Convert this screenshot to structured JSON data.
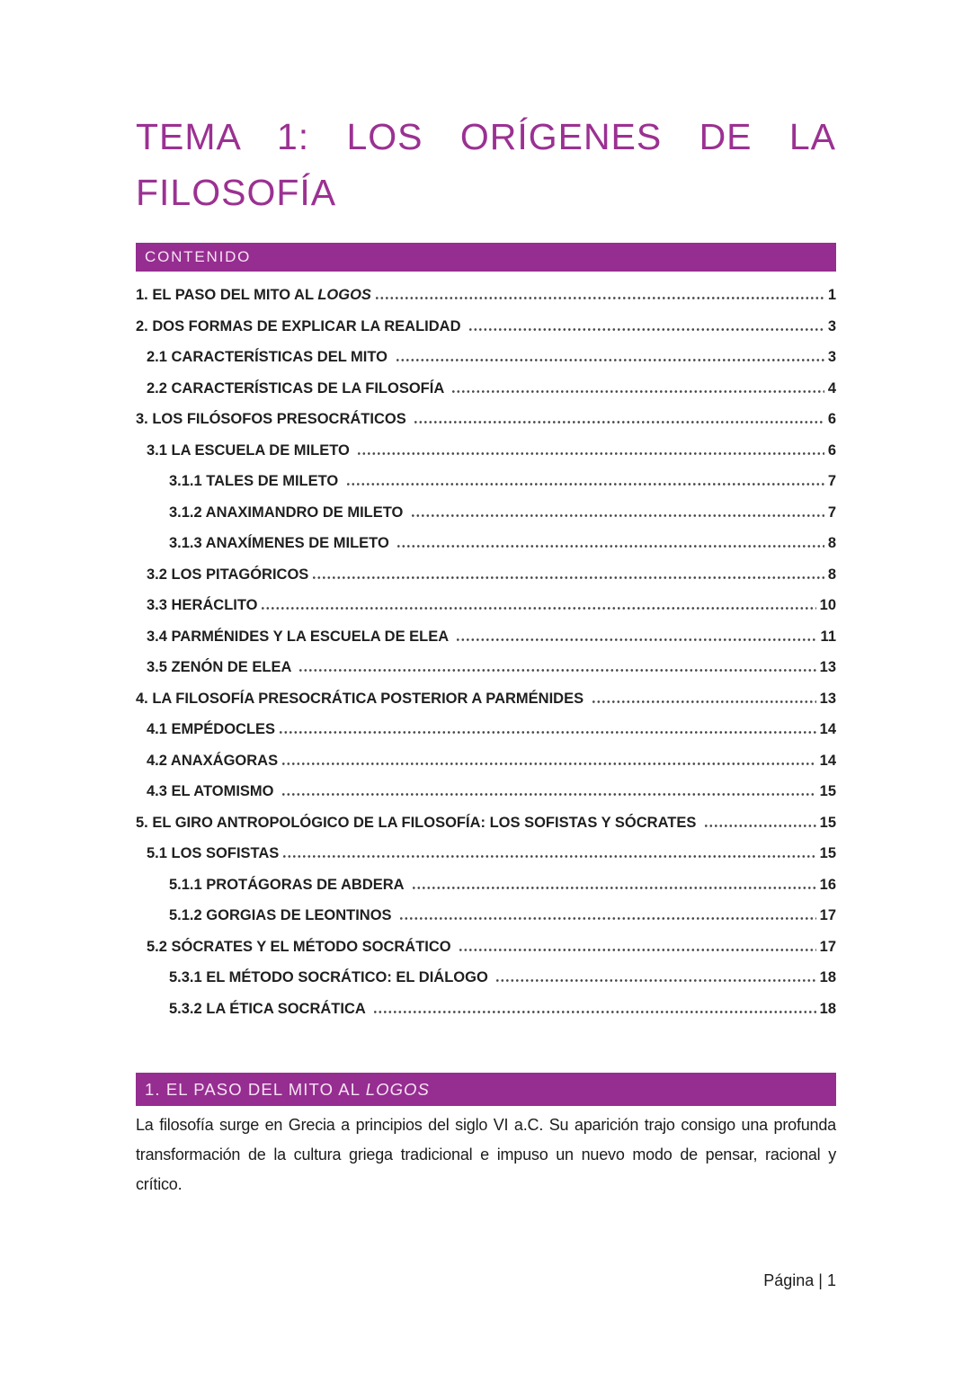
{
  "title": {
    "line1": "TEMA 1: LOS ORÍGENES DE LA",
    "line2": "FILOSOFÍA"
  },
  "toc": {
    "header": "CONTENIDO",
    "entries": [
      {
        "level": 1,
        "label": "1. EL PASO DEL MITO AL ",
        "italic": "LOGOS",
        "page": "1"
      },
      {
        "level": 1,
        "label": "2. DOS FORMAS DE EXPLICAR LA REALIDAD ",
        "italic": "",
        "page": "3"
      },
      {
        "level": 2,
        "label": "2.1 CARACTERÍSTICAS DEL MITO ",
        "italic": "",
        "page": "3"
      },
      {
        "level": 2,
        "label": "2.2 CARACTERÍSTICAS DE LA FILOSOFÍA ",
        "italic": "",
        "page": "4"
      },
      {
        "level": 1,
        "label": "3. LOS FILÓSOFOS PRESOCRÁTICOS ",
        "italic": "",
        "page": "6"
      },
      {
        "level": 2,
        "label": "3.1 LA ESCUELA DE MILETO ",
        "italic": "",
        "page": "6"
      },
      {
        "level": 3,
        "label": "3.1.1 TALES DE MILETO ",
        "italic": "",
        "page": "7"
      },
      {
        "level": 3,
        "label": "3.1.2 ANAXIMANDRO DE MILETO ",
        "italic": "",
        "page": "7"
      },
      {
        "level": 3,
        "label": "3.1.3 ANAXÍMENES DE MILETO ",
        "italic": "",
        "page": "8"
      },
      {
        "level": 2,
        "label": "3.2 LOS PITAGÓRICOS",
        "italic": "",
        "page": "8"
      },
      {
        "level": 2,
        "label": "3.3 HERÁCLITO",
        "italic": "",
        "page": "10"
      },
      {
        "level": 2,
        "label": "3.4 PARMÉNIDES Y LA ESCUELA DE ELEA ",
        "italic": "",
        "page": "11"
      },
      {
        "level": 2,
        "label": "3.5 ZENÓN DE ELEA ",
        "italic": "",
        "page": "13"
      },
      {
        "level": 1,
        "label": "4. LA FILOSOFÍA PRESOCRÁTICA POSTERIOR A PARMÉNIDES ",
        "italic": "",
        "page": "13"
      },
      {
        "level": 2,
        "label": "4.1 EMPÉDOCLES",
        "italic": "",
        "page": "14"
      },
      {
        "level": 2,
        "label": "4.2 ANAXÁGORAS",
        "italic": "",
        "page": "14"
      },
      {
        "level": 2,
        "label": "4.3 EL ATOMISMO ",
        "italic": "",
        "page": "15"
      },
      {
        "level": 1,
        "label": "5. EL GIRO ANTROPOLÓGICO DE LA FILOSOFÍA: LOS SOFISTAS Y SÓCRATES ",
        "italic": "",
        "page": "15"
      },
      {
        "level": 2,
        "label": "5.1 LOS SOFISTAS",
        "italic": "",
        "page": "15"
      },
      {
        "level": 3,
        "label": "5.1.1 PROTÁGORAS DE ABDERA ",
        "italic": "",
        "page": "16"
      },
      {
        "level": 3,
        "label": "5.1.2 GORGIAS DE LEONTINOS ",
        "italic": "",
        "page": "17"
      },
      {
        "level": 2,
        "label": "5.2 SÓCRATES Y EL MÉTODO SOCRÁTICO ",
        "italic": "",
        "page": "17"
      },
      {
        "level": 3,
        "label": "5.3.1 EL MÉTODO SOCRÁTICO: EL DIÁLOGO ",
        "italic": "",
        "page": "18"
      },
      {
        "level": 3,
        "label": "5.3.2 LA ÉTICA SOCRÁTICA ",
        "italic": "",
        "page": "18"
      }
    ]
  },
  "section": {
    "heading": "1. EL PASO DEL MITO AL ",
    "heading_italic": "LOGOS",
    "paragraph": "La filosofía surge en Grecia a principios del siglo VI a.C. Su aparición trajo consigo una profunda transformación de la cultura griega tradicional e impuso un nuevo modo de pensar, racional y crítico."
  },
  "footer": {
    "label": "Página | 1"
  },
  "colors": {
    "accent_purple": "#962d91",
    "title_purple": "#9b3192",
    "banner_text": "#f6e3f2"
  }
}
